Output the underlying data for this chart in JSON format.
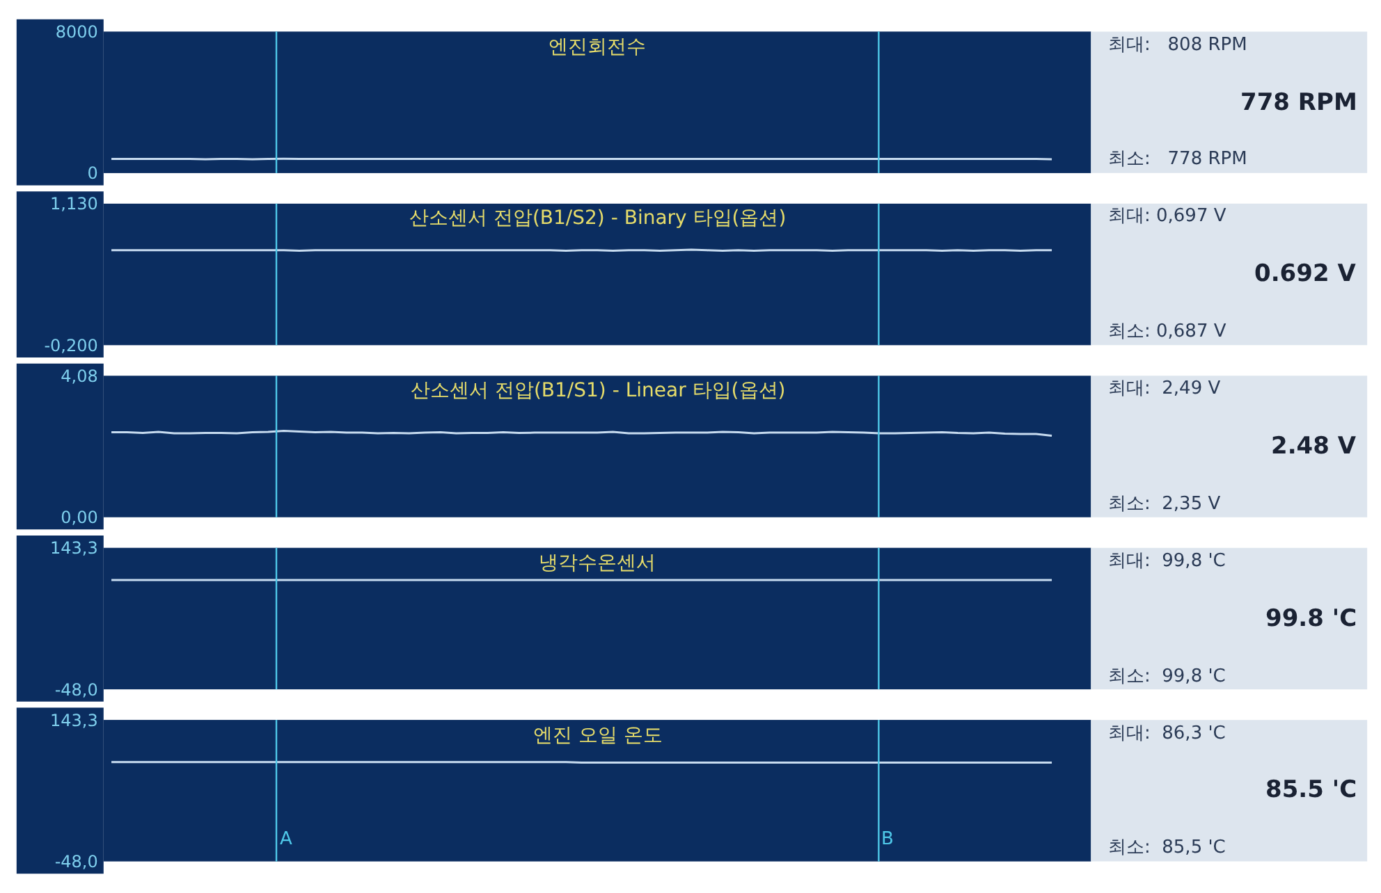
{
  "chart_data": [
    {
      "type": "line",
      "title": "엔진회전수",
      "categories": [
        null,
        null,
        null,
        null,
        null,
        null,
        null,
        null,
        null,
        null,
        null,
        null,
        null,
        null,
        null,
        null,
        null,
        null,
        null,
        null,
        null,
        null,
        null,
        null,
        null,
        null,
        null,
        null,
        null,
        null,
        null,
        null,
        null,
        null,
        null,
        null,
        null,
        null,
        null,
        null,
        null,
        null,
        null,
        null,
        null,
        null,
        null,
        null,
        null,
        null,
        null,
        null,
        null,
        null,
        null,
        null,
        null,
        null,
        null,
        null,
        null
      ],
      "series": [
        {
          "color": "#c8dcf0",
          "values": [
            800,
            800,
            800,
            800,
            800,
            800,
            778,
            800,
            800,
            778,
            800,
            808,
            800,
            800,
            800,
            800,
            800,
            800,
            800,
            800,
            800,
            800,
            800,
            800,
            800,
            800,
            800,
            800,
            800,
            800,
            800,
            800,
            800,
            800,
            800,
            800,
            800,
            800,
            800,
            800,
            800,
            800,
            800,
            800,
            800,
            800,
            800,
            800,
            800,
            800,
            800,
            800,
            800,
            800,
            800,
            800,
            800,
            800,
            800,
            800,
            778
          ]
        }
      ],
      "ylim": [
        0,
        8000
      ],
      "yticks": [
        8000,
        0
      ],
      "tick_labels": "y",
      "annotations": [
        "최대:   808 RPM",
        "778 RPM",
        "최소:   778 RPM"
      ]
    },
    {
      "type": "line",
      "title": "산소센서 전압(B1/S2) - Binary 타입(옵션)",
      "categories": [
        null,
        null,
        null,
        null,
        null,
        null,
        null,
        null,
        null,
        null,
        null,
        null,
        null,
        null,
        null,
        null,
        null,
        null,
        null,
        null,
        null,
        null,
        null,
        null,
        null,
        null,
        null,
        null,
        null,
        null,
        null,
        null,
        null,
        null,
        null,
        null,
        null,
        null,
        null,
        null,
        null,
        null,
        null,
        null,
        null,
        null,
        null,
        null,
        null,
        null,
        null,
        null,
        null,
        null,
        null,
        null,
        null,
        null,
        null,
        null,
        null
      ],
      "series": [
        {
          "color": "#c8dcf0",
          "values": [
            0.692,
            0.692,
            0.692,
            0.692,
            0.692,
            0.692,
            0.692,
            0.692,
            0.692,
            0.692,
            0.692,
            0.692,
            0.687,
            0.692,
            0.692,
            0.692,
            0.692,
            0.692,
            0.692,
            0.692,
            0.692,
            0.692,
            0.692,
            0.692,
            0.692,
            0.692,
            0.692,
            0.692,
            0.692,
            0.687,
            0.692,
            0.692,
            0.687,
            0.692,
            0.692,
            0.687,
            0.692,
            0.697,
            0.692,
            0.687,
            0.692,
            0.687,
            0.692,
            0.692,
            0.692,
            0.692,
            0.687,
            0.692,
            0.692,
            0.692,
            0.692,
            0.692,
            0.692,
            0.687,
            0.692,
            0.687,
            0.692,
            0.692,
            0.687,
            0.692,
            0.692
          ]
        }
      ],
      "ylim": [
        -0.2,
        1.13
      ],
      "yticks": [
        {
          "value": 1.13,
          "label": "1,130"
        },
        {
          "value": -0.2,
          "label": "-0,200"
        }
      ],
      "tick_labels": "y",
      "annotations": [
        "최대: 0,697 V",
        "0.692 V",
        "최소: 0,687 V"
      ]
    },
    {
      "type": "line",
      "title": "산소센서 전압(B1/S1) - Linear 타입(옵션)",
      "categories": [
        null,
        null,
        null,
        null,
        null,
        null,
        null,
        null,
        null,
        null,
        null,
        null,
        null,
        null,
        null,
        null,
        null,
        null,
        null,
        null,
        null,
        null,
        null,
        null,
        null,
        null,
        null,
        null,
        null,
        null,
        null,
        null,
        null,
        null,
        null,
        null,
        null,
        null,
        null,
        null,
        null,
        null,
        null,
        null,
        null,
        null,
        null,
        null,
        null,
        null,
        null,
        null,
        null,
        null,
        null,
        null,
        null,
        null,
        null,
        null,
        null
      ],
      "series": [
        {
          "color": "#c8dcf0",
          "values": [
            2.45,
            2.45,
            2.43,
            2.46,
            2.42,
            2.42,
            2.43,
            2.43,
            2.42,
            2.45,
            2.46,
            2.49,
            2.47,
            2.45,
            2.46,
            2.44,
            2.44,
            2.42,
            2.43,
            2.42,
            2.44,
            2.45,
            2.42,
            2.43,
            2.43,
            2.45,
            2.43,
            2.44,
            2.44,
            2.44,
            2.44,
            2.44,
            2.46,
            2.42,
            2.42,
            2.43,
            2.44,
            2.44,
            2.44,
            2.46,
            2.45,
            2.42,
            2.44,
            2.44,
            2.44,
            2.44,
            2.46,
            2.45,
            2.44,
            2.42,
            2.42,
            2.43,
            2.44,
            2.45,
            2.43,
            2.42,
            2.44,
            2.41,
            2.4,
            2.4,
            2.35
          ]
        }
      ],
      "ylim": [
        0,
        4.08
      ],
      "yticks": [
        {
          "value": 4.08,
          "label": "4,08"
        },
        {
          "value": 0,
          "label": "0,00"
        }
      ],
      "tick_labels": "y",
      "annotations": [
        "최대:  2,49 V",
        "2.48 V",
        "최소:  2,35 V"
      ]
    },
    {
      "type": "line",
      "title": "냉각수온센서",
      "categories": [
        null,
        null,
        null,
        null,
        null,
        null,
        null,
        null,
        null,
        null,
        null,
        null,
        null,
        null,
        null,
        null,
        null,
        null,
        null,
        null,
        null,
        null,
        null,
        null,
        null,
        null,
        null,
        null,
        null,
        null,
        null,
        null,
        null,
        null,
        null,
        null,
        null,
        null,
        null,
        null,
        null,
        null,
        null,
        null,
        null,
        null,
        null,
        null,
        null,
        null,
        null,
        null,
        null,
        null,
        null,
        null,
        null,
        null,
        null,
        null,
        null
      ],
      "series": [
        {
          "color": "#c8dcf0",
          "values": [
            99.8,
            99.8,
            99.8,
            99.8,
            99.8,
            99.8,
            99.8,
            99.8,
            99.8,
            99.8,
            99.8,
            99.8,
            99.8,
            99.8,
            99.8,
            99.8,
            99.8,
            99.8,
            99.8,
            99.8,
            99.8,
            99.8,
            99.8,
            99.8,
            99.8,
            99.8,
            99.8,
            99.8,
            99.8,
            99.8,
            99.8,
            99.8,
            99.8,
            99.8,
            99.8,
            99.8,
            99.8,
            99.8,
            99.8,
            99.8,
            99.8,
            99.8,
            99.8,
            99.8,
            99.8,
            99.8,
            99.8,
            99.8,
            99.8,
            99.8,
            99.8,
            99.8,
            99.8,
            99.8,
            99.8,
            99.8,
            99.8,
            99.8,
            99.8,
            99.8,
            99.8
          ]
        }
      ],
      "ylim": [
        -48.0,
        143.3
      ],
      "yticks": [
        {
          "value": 143.3,
          "label": "143,3"
        },
        {
          "value": -48.0,
          "label": "-48,0"
        }
      ],
      "tick_labels": "y",
      "annotations": [
        "최대:  99,8 'C",
        "99.8 'C",
        "최소:  99,8 'C"
      ]
    },
    {
      "type": "line",
      "title": "엔진 오일 온도",
      "categories": [
        null,
        null,
        null,
        null,
        null,
        null,
        null,
        null,
        null,
        null,
        null,
        null,
        null,
        null,
        null,
        null,
        null,
        null,
        null,
        null,
        null,
        null,
        null,
        null,
        null,
        null,
        null,
        null,
        null,
        null,
        null,
        null,
        null,
        null,
        null,
        null,
        null,
        null,
        null,
        null,
        null,
        null,
        null,
        null,
        null,
        null,
        null,
        null,
        null,
        null,
        null,
        null,
        null,
        null,
        null,
        null,
        null,
        null,
        null,
        null,
        null
      ],
      "series": [
        {
          "color": "#c8dcf0",
          "values": [
            86.3,
            86.3,
            86.3,
            86.3,
            86.3,
            86.3,
            86.3,
            86.3,
            86.3,
            86.3,
            86.3,
            86.3,
            86.3,
            86.3,
            86.3,
            86.3,
            86.3,
            86.3,
            86.3,
            86.3,
            86.3,
            86.3,
            86.3,
            86.3,
            86.3,
            86.3,
            86.3,
            86.3,
            86.3,
            86.3,
            85.5,
            85.5,
            85.5,
            85.5,
            85.5,
            85.5,
            85.5,
            85.5,
            85.5,
            85.5,
            85.5,
            85.5,
            85.5,
            85.5,
            85.5,
            85.5,
            85.5,
            85.5,
            85.5,
            85.5,
            85.5,
            85.5,
            85.5,
            85.5,
            85.5,
            85.5,
            85.5,
            85.5,
            85.5,
            85.5,
            85.5
          ]
        }
      ],
      "ylim": [
        -48.0,
        143.3
      ],
      "yticks": [
        {
          "value": 143.3,
          "label": "143,3"
        },
        {
          "value": -48.0,
          "label": "-48,0"
        }
      ],
      "tick_labels": "y",
      "annotations": [
        "최대:  86,3 'C",
        "85.5 'C",
        "최소:  85,5 'C",
        "A",
        "B"
      ]
    }
  ]
}
